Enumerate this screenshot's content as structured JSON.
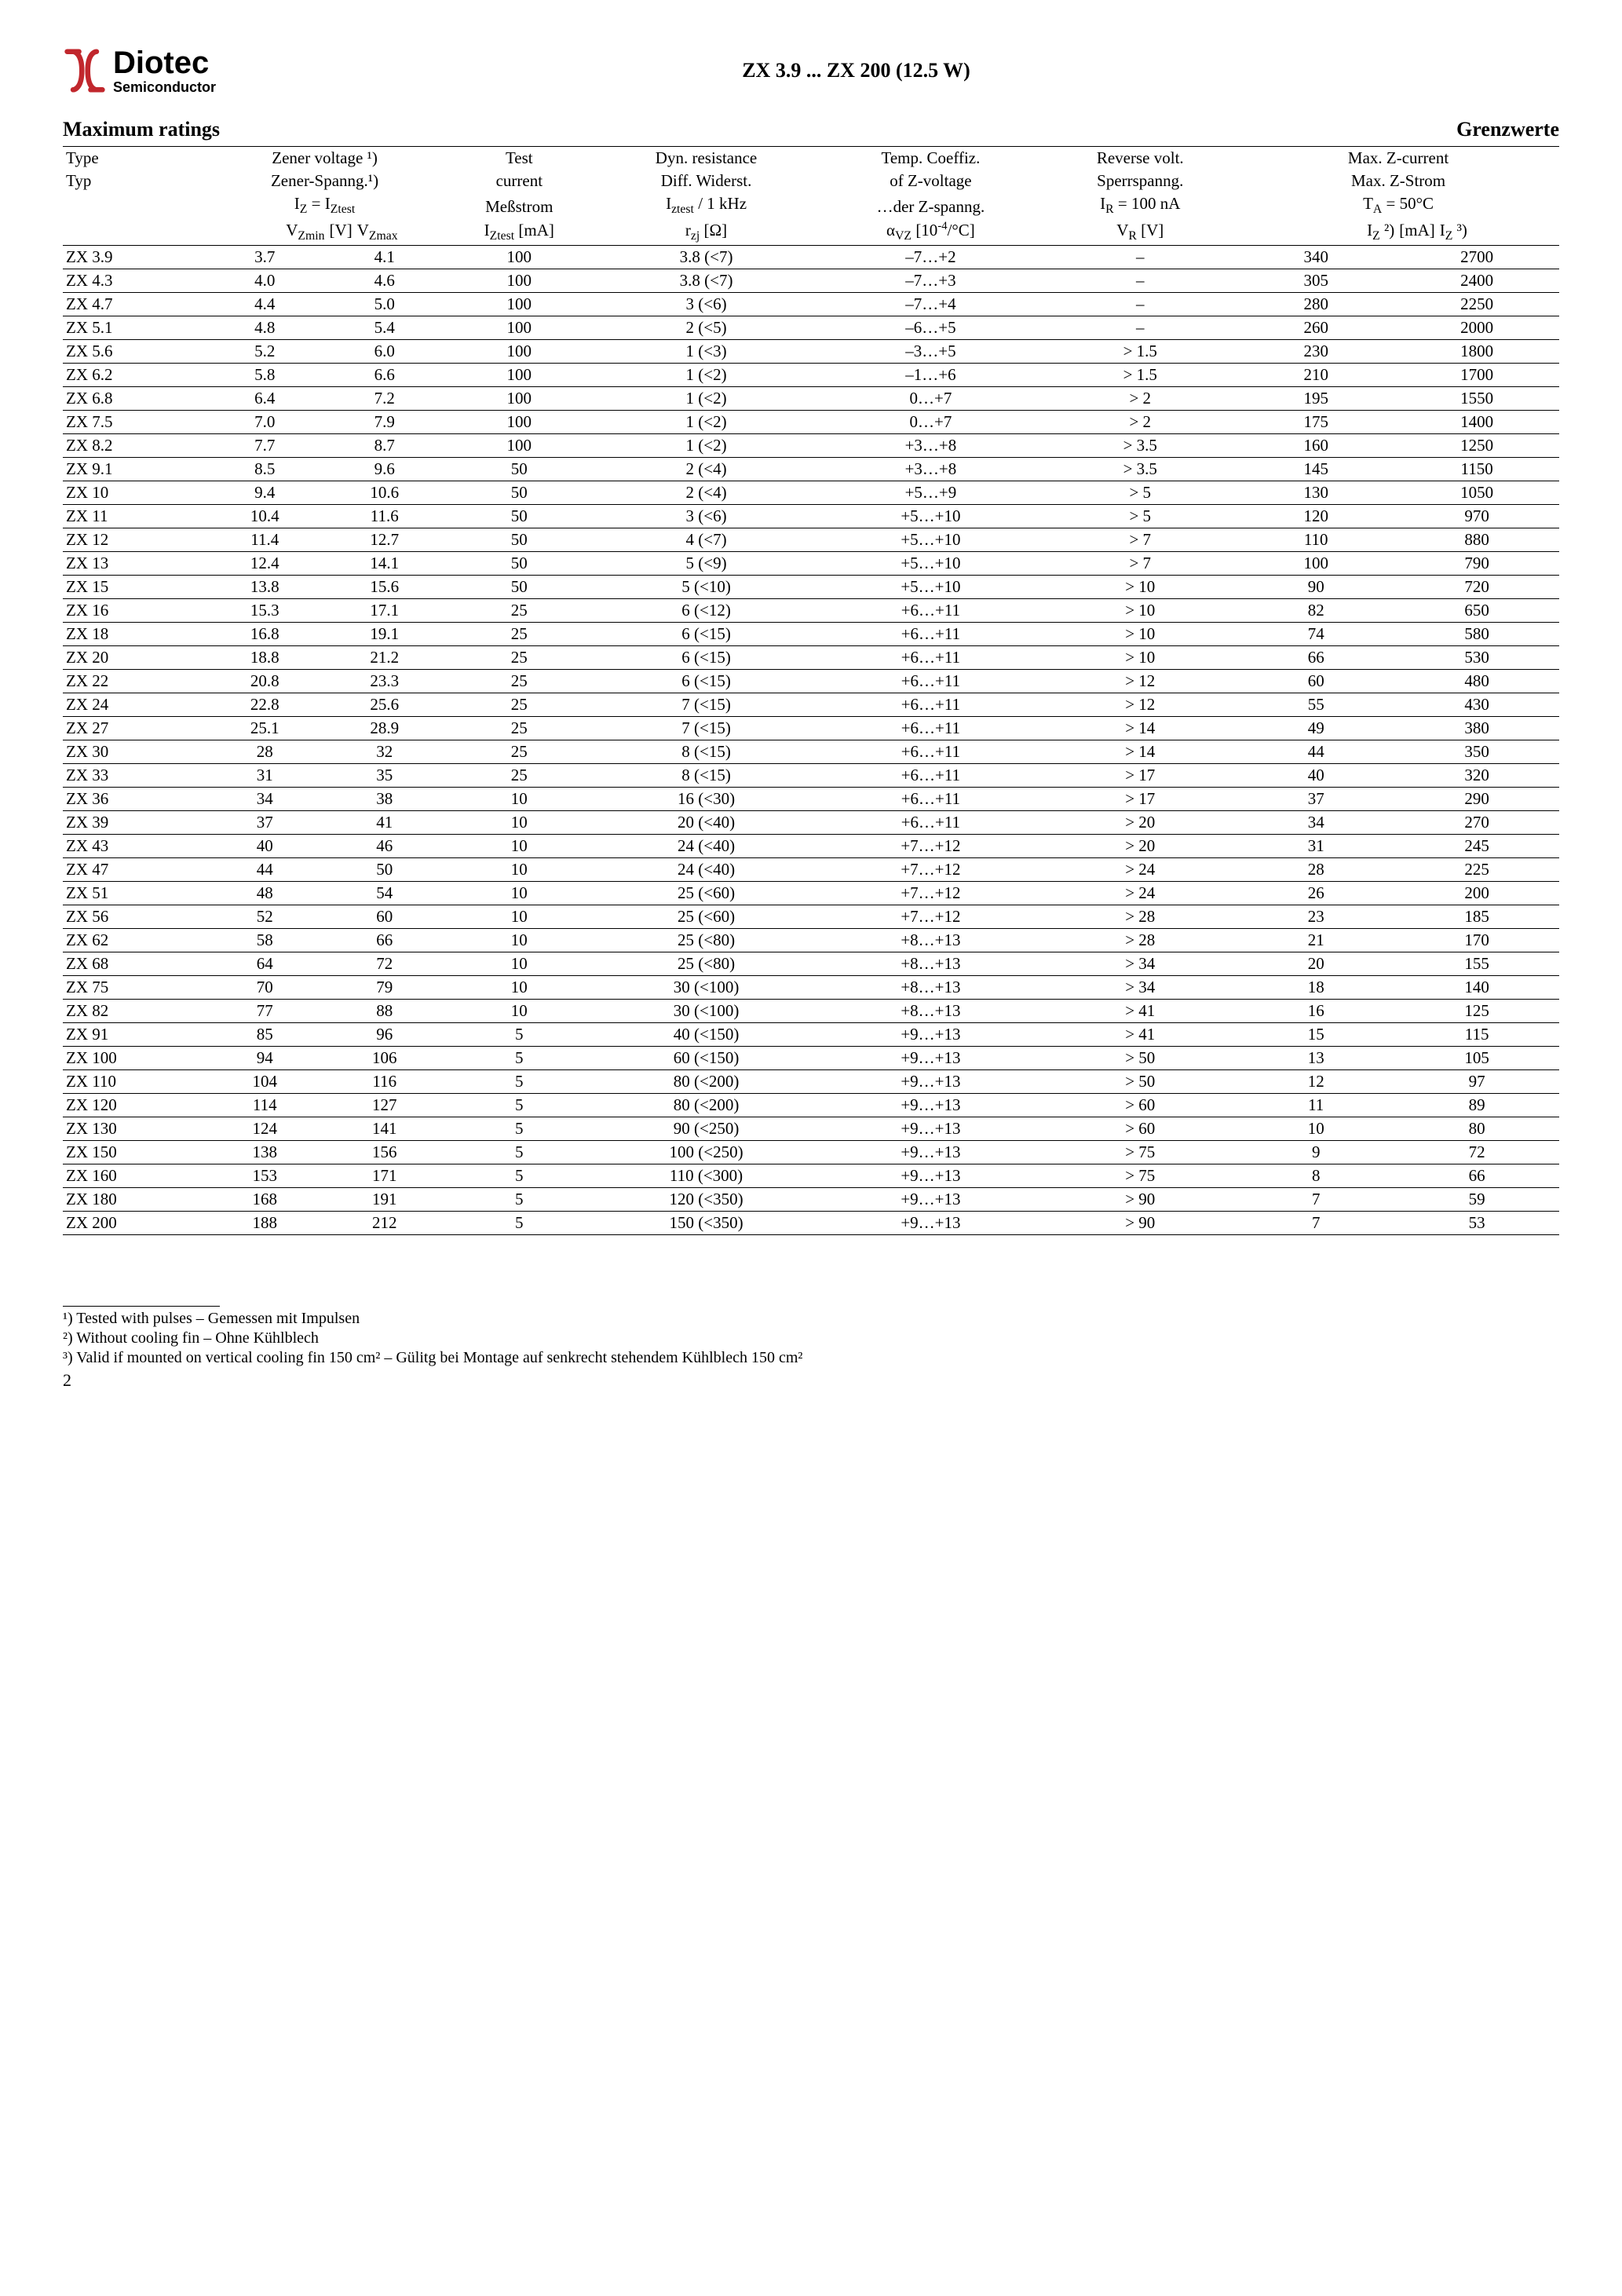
{
  "logo": {
    "brand": "Diotec",
    "sub": "Semiconductor"
  },
  "doc_title": "ZX 3.9 ... ZX 200 (12.5 W)",
  "section_left": "Maximum ratings",
  "section_right": "Grenzwerte",
  "header": {
    "type": {
      "en": "Type",
      "de": "Typ"
    },
    "zener": {
      "l1": "Zener voltage ¹)",
      "l2": "Zener-Spanng.¹)",
      "l3_html": "I<sub>Z</sub> = I<sub>Ztest</sub>",
      "l4_left_html": "V<sub>Zmin</sub>",
      "l4_mid": "[V]",
      "l4_right_html": "V<sub>Zmax</sub>"
    },
    "test": {
      "l1": "Test",
      "l2": "current",
      "l3": "Meßstrom",
      "l4_html": "I<sub>Ztest</sub> [mA]"
    },
    "dyn": {
      "l1": "Dyn. resistance",
      "l2": "Diff. Widerst.",
      "l3_html": "I<sub>ztest</sub> / 1 kHz",
      "l4_html": "r<sub>zj</sub> [Ω]"
    },
    "temp": {
      "l1": "Temp. Coeffiz.",
      "l2": "of Z-voltage",
      "l3": "…der Z-spanng.",
      "l4_html": "α<sub>VZ</sub> [10<sup>-4</sup>/°C]"
    },
    "rev": {
      "l1": "Reverse volt.",
      "l2": "Sperrspanng.",
      "l3_html": "I<sub>R</sub> = 100 nA",
      "l4_html": "V<sub>R</sub> [V]"
    },
    "max": {
      "l1": "Max. Z-current",
      "l2": "Max. Z-Strom",
      "l3_html": "T<sub>A</sub> = 50°C",
      "l4_left_html": "I<sub>Z</sub> ²)",
      "l4_mid": "[mA]",
      "l4_right_html": "I<sub>Z</sub> ³)"
    }
  },
  "rows": [
    {
      "type": "ZX 3.9",
      "vzmin": "3.7",
      "vzmax": "4.1",
      "iz": "100",
      "rzj": "3.8 (<7)",
      "alpha": "–7…+2",
      "vr": "–",
      "iz2": "340",
      "iz3": "2700"
    },
    {
      "type": "ZX 4.3",
      "vzmin": "4.0",
      "vzmax": "4.6",
      "iz": "100",
      "rzj": "3.8 (<7)",
      "alpha": "–7…+3",
      "vr": "–",
      "iz2": "305",
      "iz3": "2400"
    },
    {
      "type": "ZX 4.7",
      "vzmin": "4.4",
      "vzmax": "5.0",
      "iz": "100",
      "rzj": "3 (<6)",
      "alpha": "–7…+4",
      "vr": "–",
      "iz2": "280",
      "iz3": "2250"
    },
    {
      "type": "ZX 5.1",
      "vzmin": "4.8",
      "vzmax": "5.4",
      "iz": "100",
      "rzj": "2 (<5)",
      "alpha": "–6…+5",
      "vr": "–",
      "iz2": "260",
      "iz3": "2000"
    },
    {
      "type": "ZX 5.6",
      "vzmin": "5.2",
      "vzmax": "6.0",
      "iz": "100",
      "rzj": "1 (<3)",
      "alpha": "–3…+5",
      "vr": "> 1.5",
      "iz2": "230",
      "iz3": "1800"
    },
    {
      "type": "ZX 6.2",
      "vzmin": "5.8",
      "vzmax": "6.6",
      "iz": "100",
      "rzj": "1 (<2)",
      "alpha": "–1…+6",
      "vr": "> 1.5",
      "iz2": "210",
      "iz3": "1700"
    },
    {
      "type": "ZX 6.8",
      "vzmin": "6.4",
      "vzmax": "7.2",
      "iz": "100",
      "rzj": "1 (<2)",
      "alpha": "0…+7",
      "vr": "> 2",
      "iz2": "195",
      "iz3": "1550"
    },
    {
      "type": "ZX 7.5",
      "vzmin": "7.0",
      "vzmax": "7.9",
      "iz": "100",
      "rzj": "1 (<2)",
      "alpha": "0…+7",
      "vr": "> 2",
      "iz2": "175",
      "iz3": "1400"
    },
    {
      "type": "ZX 8.2",
      "vzmin": "7.7",
      "vzmax": "8.7",
      "iz": "100",
      "rzj": "1 (<2)",
      "alpha": "+3…+8",
      "vr": "> 3.5",
      "iz2": "160",
      "iz3": "1250"
    },
    {
      "type": "ZX 9.1",
      "vzmin": "8.5",
      "vzmax": "9.6",
      "iz": "50",
      "rzj": "2 (<4)",
      "alpha": "+3…+8",
      "vr": "> 3.5",
      "iz2": "145",
      "iz3": "1150"
    },
    {
      "type": "ZX 10",
      "vzmin": "9.4",
      "vzmax": "10.6",
      "iz": "50",
      "rzj": "2 (<4)",
      "alpha": "+5…+9",
      "vr": "> 5",
      "iz2": "130",
      "iz3": "1050"
    },
    {
      "type": "ZX 11",
      "vzmin": "10.4",
      "vzmax": "11.6",
      "iz": "50",
      "rzj": "3 (<6)",
      "alpha": "+5…+10",
      "vr": "> 5",
      "iz2": "120",
      "iz3": "970"
    },
    {
      "type": "ZX 12",
      "vzmin": "11.4",
      "vzmax": "12.7",
      "iz": "50",
      "rzj": "4 (<7)",
      "alpha": "+5…+10",
      "vr": "> 7",
      "iz2": "110",
      "iz3": "880"
    },
    {
      "type": "ZX 13",
      "vzmin": "12.4",
      "vzmax": "14.1",
      "iz": "50",
      "rzj": "5 (<9)",
      "alpha": "+5…+10",
      "vr": "> 7",
      "iz2": "100",
      "iz3": "790"
    },
    {
      "type": "ZX 15",
      "vzmin": "13.8",
      "vzmax": "15.6",
      "iz": "50",
      "rzj": "5 (<10)",
      "alpha": "+5…+10",
      "vr": "> 10",
      "iz2": "90",
      "iz3": "720"
    },
    {
      "type": "ZX 16",
      "vzmin": "15.3",
      "vzmax": "17.1",
      "iz": "25",
      "rzj": "6 (<12)",
      "alpha": "+6…+11",
      "vr": "> 10",
      "iz2": "82",
      "iz3": "650"
    },
    {
      "type": "ZX 18",
      "vzmin": "16.8",
      "vzmax": "19.1",
      "iz": "25",
      "rzj": "6 (<15)",
      "alpha": "+6…+11",
      "vr": "> 10",
      "iz2": "74",
      "iz3": "580"
    },
    {
      "type": "ZX 20",
      "vzmin": "18.8",
      "vzmax": "21.2",
      "iz": "25",
      "rzj": "6 (<15)",
      "alpha": "+6…+11",
      "vr": "> 10",
      "iz2": "66",
      "iz3": "530"
    },
    {
      "type": "ZX 22",
      "vzmin": "20.8",
      "vzmax": "23.3",
      "iz": "25",
      "rzj": "6 (<15)",
      "alpha": "+6…+11",
      "vr": "> 12",
      "iz2": "60",
      "iz3": "480"
    },
    {
      "type": "ZX 24",
      "vzmin": "22.8",
      "vzmax": "25.6",
      "iz": "25",
      "rzj": "7 (<15)",
      "alpha": "+6…+11",
      "vr": "> 12",
      "iz2": "55",
      "iz3": "430"
    },
    {
      "type": "ZX 27",
      "vzmin": "25.1",
      "vzmax": "28.9",
      "iz": "25",
      "rzj": "7 (<15)",
      "alpha": "+6…+11",
      "vr": "> 14",
      "iz2": "49",
      "iz3": "380"
    },
    {
      "type": "ZX 30",
      "vzmin": "28",
      "vzmax": "32",
      "iz": "25",
      "rzj": "8 (<15)",
      "alpha": "+6…+11",
      "vr": "> 14",
      "iz2": "44",
      "iz3": "350"
    },
    {
      "type": "ZX 33",
      "vzmin": "31",
      "vzmax": "35",
      "iz": "25",
      "rzj": "8 (<15)",
      "alpha": "+6…+11",
      "vr": "> 17",
      "iz2": "40",
      "iz3": "320"
    },
    {
      "type": "ZX 36",
      "vzmin": "34",
      "vzmax": "38",
      "iz": "10",
      "rzj": "16 (<30)",
      "alpha": "+6…+11",
      "vr": "> 17",
      "iz2": "37",
      "iz3": "290"
    },
    {
      "type": "ZX 39",
      "vzmin": "37",
      "vzmax": "41",
      "iz": "10",
      "rzj": "20 (<40)",
      "alpha": "+6…+11",
      "vr": "> 20",
      "iz2": "34",
      "iz3": "270"
    },
    {
      "type": "ZX 43",
      "vzmin": "40",
      "vzmax": "46",
      "iz": "10",
      "rzj": "24 (<40)",
      "alpha": "+7…+12",
      "vr": "> 20",
      "iz2": "31",
      "iz3": "245"
    },
    {
      "type": "ZX 47",
      "vzmin": "44",
      "vzmax": "50",
      "iz": "10",
      "rzj": "24 (<40)",
      "alpha": "+7…+12",
      "vr": "> 24",
      "iz2": "28",
      "iz3": "225"
    },
    {
      "type": "ZX 51",
      "vzmin": "48",
      "vzmax": "54",
      "iz": "10",
      "rzj": "25 (<60)",
      "alpha": "+7…+12",
      "vr": "> 24",
      "iz2": "26",
      "iz3": "200"
    },
    {
      "type": "ZX 56",
      "vzmin": "52",
      "vzmax": "60",
      "iz": "10",
      "rzj": "25 (<60)",
      "alpha": "+7…+12",
      "vr": "> 28",
      "iz2": "23",
      "iz3": "185"
    },
    {
      "type": "ZX 62",
      "vzmin": "58",
      "vzmax": "66",
      "iz": "10",
      "rzj": "25 (<80)",
      "alpha": "+8…+13",
      "vr": "> 28",
      "iz2": "21",
      "iz3": "170"
    },
    {
      "type": "ZX 68",
      "vzmin": "64",
      "vzmax": "72",
      "iz": "10",
      "rzj": "25 (<80)",
      "alpha": "+8…+13",
      "vr": "> 34",
      "iz2": "20",
      "iz3": "155"
    },
    {
      "type": "ZX 75",
      "vzmin": "70",
      "vzmax": "79",
      "iz": "10",
      "rzj": "30 (<100)",
      "alpha": "+8…+13",
      "vr": "> 34",
      "iz2": "18",
      "iz3": "140"
    },
    {
      "type": "ZX 82",
      "vzmin": "77",
      "vzmax": "88",
      "iz": "10",
      "rzj": "30 (<100)",
      "alpha": "+8…+13",
      "vr": "> 41",
      "iz2": "16",
      "iz3": "125"
    },
    {
      "type": "ZX 91",
      "vzmin": "85",
      "vzmax": "96",
      "iz": "5",
      "rzj": "40 (<150)",
      "alpha": "+9…+13",
      "vr": "> 41",
      "iz2": "15",
      "iz3": "115"
    },
    {
      "type": "ZX 100",
      "vzmin": "94",
      "vzmax": "106",
      "iz": "5",
      "rzj": "60 (<150)",
      "alpha": "+9…+13",
      "vr": "> 50",
      "iz2": "13",
      "iz3": "105"
    },
    {
      "type": "ZX 110",
      "vzmin": "104",
      "vzmax": "116",
      "iz": "5",
      "rzj": "80 (<200)",
      "alpha": "+9…+13",
      "vr": "> 50",
      "iz2": "12",
      "iz3": "97"
    },
    {
      "type": "ZX 120",
      "vzmin": "114",
      "vzmax": "127",
      "iz": "5",
      "rzj": "80 (<200)",
      "alpha": "+9…+13",
      "vr": "> 60",
      "iz2": "11",
      "iz3": "89"
    },
    {
      "type": "ZX 130",
      "vzmin": "124",
      "vzmax": "141",
      "iz": "5",
      "rzj": "90 (<250)",
      "alpha": "+9…+13",
      "vr": "> 60",
      "iz2": "10",
      "iz3": "80"
    },
    {
      "type": "ZX 150",
      "vzmin": "138",
      "vzmax": "156",
      "iz": "5",
      "rzj": "100 (<250)",
      "alpha": "+9…+13",
      "vr": "> 75",
      "iz2": "9",
      "iz3": "72"
    },
    {
      "type": "ZX 160",
      "vzmin": "153",
      "vzmax": "171",
      "iz": "5",
      "rzj": "110 (<300)",
      "alpha": "+9…+13",
      "vr": "> 75",
      "iz2": "8",
      "iz3": "66"
    },
    {
      "type": "ZX 180",
      "vzmin": "168",
      "vzmax": "191",
      "iz": "5",
      "rzj": "120 (<350)",
      "alpha": "+9…+13",
      "vr": "> 90",
      "iz2": "7",
      "iz3": "59"
    },
    {
      "type": "ZX 200",
      "vzmin": "188",
      "vzmax": "212",
      "iz": "5",
      "rzj": "150 (<350)",
      "alpha": "+9…+13",
      "vr": "> 90",
      "iz2": "7",
      "iz3": "53"
    }
  ],
  "footnotes": {
    "f1": "¹)   Tested with pulses – Gemessen mit Impulsen",
    "f2": "²)   Without cooling fin – Ohne Kühlblech",
    "f3": "³)   Valid if mounted on vertical cooling fin 150 cm² – Gülitg bei Montage auf  senkrecht stehendem Kühlblech 150 cm²"
  },
  "page_number": "2"
}
